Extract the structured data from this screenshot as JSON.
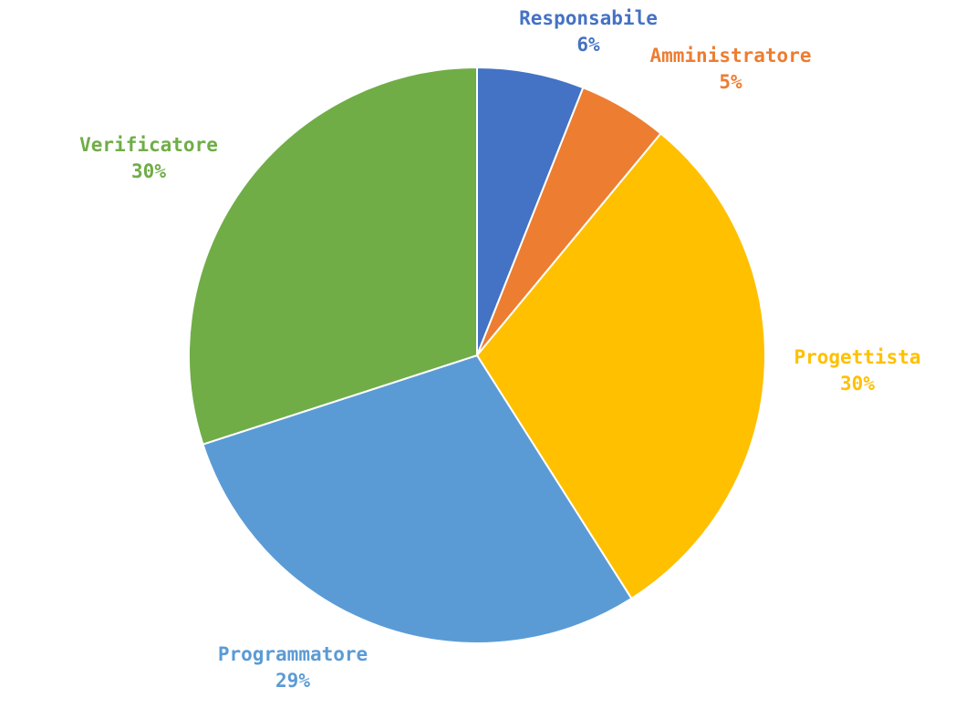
{
  "chart_data": {
    "type": "pie",
    "title": "",
    "start_angle_deg": 0,
    "direction": "clockwise",
    "legend": "none",
    "slices": [
      {
        "name": "Responsabile",
        "value": 6,
        "label": "6%",
        "color": "#4472C4"
      },
      {
        "name": "Amministratore",
        "value": 5,
        "label": "5%",
        "color": "#ED7D31"
      },
      {
        "name": "Progettista",
        "value": 30,
        "label": "30%",
        "color": "#FFC000"
      },
      {
        "name": "Programmatore",
        "value": 29,
        "label": "29%",
        "color": "#5B9BD5"
      },
      {
        "name": "Verificatore",
        "value": 30,
        "label": "30%",
        "color": "#70AD47"
      }
    ]
  }
}
